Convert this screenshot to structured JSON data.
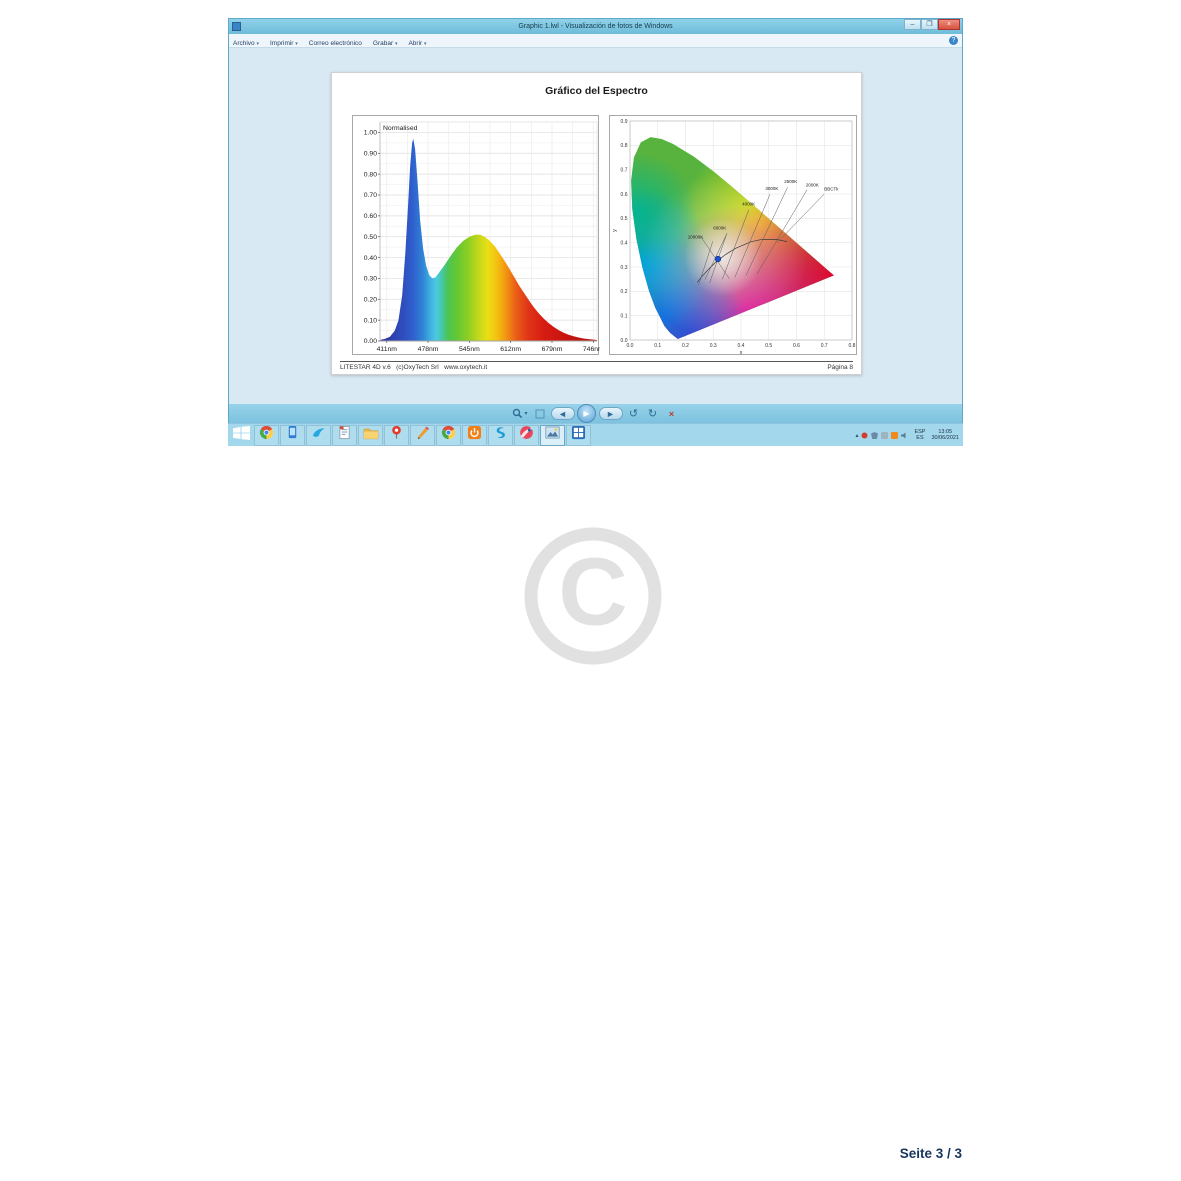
{
  "page": {
    "footer_page_label": "Seite 3 / 3",
    "watermark_symbol": "C"
  },
  "window": {
    "title": "Graphic 1.lwl - Visualización de fotos de Windows",
    "minimize_glyph": "–",
    "close_glyph": "×",
    "help_glyph": "?",
    "menus": [
      {
        "id": "archivo",
        "label": "Archivo",
        "arrow": true
      },
      {
        "id": "imprimir",
        "label": "Imprimir",
        "arrow": true
      },
      {
        "id": "correo",
        "label": "Correo electrónico",
        "arrow": false
      },
      {
        "id": "grabar",
        "label": "Grabar",
        "arrow": true
      },
      {
        "id": "abrir",
        "label": "Abrir",
        "arrow": true
      }
    ]
  },
  "document": {
    "title": "Gráfico del Espectro",
    "footer_left": "LITESTAR 4D v.6   (c)OxyTech Srl   www.oxytech.it",
    "footer_right": "Página 8"
  },
  "viewer_controls": {
    "zoom_caret": "▾",
    "prev_glyph": "◄",
    "play_glyph": "▶",
    "next_glyph": "►",
    "rotate_ccw_glyph": "↺",
    "rotate_cw_glyph": "↻",
    "delete_glyph": "×"
  },
  "taskbar": {
    "items": [
      {
        "kind": "windows",
        "name": "start-button"
      },
      {
        "kind": "chrome",
        "name": "chrome-browser"
      },
      {
        "kind": "phone",
        "name": "phone-app"
      },
      {
        "kind": "bird",
        "name": "messaging-app"
      },
      {
        "kind": "doc",
        "name": "document-app"
      },
      {
        "kind": "folder",
        "name": "file-explorer"
      },
      {
        "kind": "pin",
        "name": "maps-app"
      },
      {
        "kind": "pencil",
        "name": "editor-app"
      },
      {
        "kind": "chrome",
        "name": "browser-2"
      },
      {
        "kind": "power",
        "name": "power-app"
      },
      {
        "kind": "swirl",
        "name": "skype-app"
      },
      {
        "kind": "darts",
        "name": "media-app"
      },
      {
        "kind": "photo",
        "name": "photo-viewer",
        "active": true
      },
      {
        "kind": "tiles",
        "name": "office-app"
      }
    ],
    "tray": {
      "caret": "▴",
      "language_top": "ESP",
      "language_bottom": "ES",
      "time": "13:05",
      "date": "30/06/2021"
    }
  },
  "chart_data": [
    {
      "type": "area",
      "title": "Normalised",
      "xlim": [
        400,
        752
      ],
      "ylim": [
        0,
        1.05
      ],
      "x_ticks": [
        {
          "value": 411,
          "label": "411nm"
        },
        {
          "value": 478,
          "label": "478nm"
        },
        {
          "value": 545,
          "label": "545nm"
        },
        {
          "value": 612,
          "label": "612nm"
        },
        {
          "value": 679,
          "label": "679nm"
        },
        {
          "value": 746,
          "label": "746nm"
        }
      ],
      "y_ticks": [
        0.0,
        0.1,
        0.2,
        0.3,
        0.4,
        0.5,
        0.6,
        0.7,
        0.8,
        0.9,
        1.0
      ],
      "points": [
        [
          400,
          0.005
        ],
        [
          408,
          0.01
        ],
        [
          416,
          0.02
        ],
        [
          424,
          0.05
        ],
        [
          430,
          0.1
        ],
        [
          436,
          0.22
        ],
        [
          441,
          0.42
        ],
        [
          445,
          0.62
        ],
        [
          449,
          0.84
        ],
        [
          452,
          0.95
        ],
        [
          454,
          0.97
        ],
        [
          457,
          0.92
        ],
        [
          461,
          0.76
        ],
        [
          465,
          0.58
        ],
        [
          470,
          0.44
        ],
        [
          475,
          0.36
        ],
        [
          480,
          0.315
        ],
        [
          485,
          0.3
        ],
        [
          490,
          0.305
        ],
        [
          495,
          0.325
        ],
        [
          505,
          0.365
        ],
        [
          515,
          0.41
        ],
        [
          525,
          0.45
        ],
        [
          535,
          0.48
        ],
        [
          545,
          0.5
        ],
        [
          555,
          0.51
        ],
        [
          562,
          0.51
        ],
        [
          570,
          0.5
        ],
        [
          578,
          0.48
        ],
        [
          586,
          0.455
        ],
        [
          594,
          0.42
        ],
        [
          602,
          0.385
        ],
        [
          610,
          0.345
        ],
        [
          618,
          0.305
        ],
        [
          626,
          0.265
        ],
        [
          634,
          0.228
        ],
        [
          642,
          0.193
        ],
        [
          650,
          0.16
        ],
        [
          658,
          0.131
        ],
        [
          666,
          0.106
        ],
        [
          674,
          0.085
        ],
        [
          682,
          0.067
        ],
        [
          690,
          0.052
        ],
        [
          698,
          0.04
        ],
        [
          706,
          0.03
        ],
        [
          714,
          0.023
        ],
        [
          722,
          0.017
        ],
        [
          730,
          0.012
        ],
        [
          740,
          0.008
        ],
        [
          752,
          0.005
        ]
      ],
      "spectral_colors": [
        [
          400,
          "#2d2f9a"
        ],
        [
          440,
          "#2f50c0"
        ],
        [
          455,
          "#2f63cf"
        ],
        [
          470,
          "#2f86d6"
        ],
        [
          483,
          "#41b5e2"
        ],
        [
          492,
          "#4ccadf"
        ],
        [
          500,
          "#43c8a8"
        ],
        [
          510,
          "#4cc455"
        ],
        [
          525,
          "#63c832"
        ],
        [
          545,
          "#94cf22"
        ],
        [
          560,
          "#c4d81b"
        ],
        [
          575,
          "#eadf14"
        ],
        [
          590,
          "#f4c010"
        ],
        [
          605,
          "#f29313"
        ],
        [
          620,
          "#ea5f17"
        ],
        [
          640,
          "#e03517"
        ],
        [
          665,
          "#d71d12"
        ],
        [
          700,
          "#c81410"
        ],
        [
          752,
          "#b51210"
        ]
      ]
    },
    {
      "type": "chromaticity",
      "xlabel": "x",
      "ylabel": "y",
      "xlim": [
        0,
        0.8
      ],
      "ylim": [
        0,
        0.9
      ],
      "tick_step": 0.1,
      "source_point": {
        "x": 0.317,
        "y": 0.333
      },
      "base_color": "#57b33e",
      "fill_layers": [
        {
          "cx": 0.47,
          "cy": 0.47,
          "r": 0.3,
          "color": "#f4e400",
          "opacity": 1
        },
        {
          "cx": 0.735,
          "cy": 0.265,
          "r": 0.4,
          "color": "#e00713",
          "opacity": 1
        },
        {
          "cx": 0.43,
          "cy": 0.08,
          "r": 0.42,
          "color": "#e8009c",
          "opacity": 1
        },
        {
          "cx": 0.225,
          "cy": 0.01,
          "r": 0.22,
          "color": "#5022c8",
          "opacity": 1
        },
        {
          "cx": 0.125,
          "cy": 0.1,
          "r": 0.28,
          "color": "#1b66dd",
          "opacity": 1
        },
        {
          "cx": 0.05,
          "cy": 0.32,
          "r": 0.26,
          "color": "#009fe8",
          "opacity": 1
        },
        {
          "cx": 0.025,
          "cy": 0.52,
          "r": 0.22,
          "color": "#00b491",
          "opacity": 0.95
        },
        {
          "cx": 0.34,
          "cy": 0.34,
          "r": 0.3,
          "color": "#eef2f2",
          "opacity": 0.45
        },
        {
          "cx": 0.335,
          "cy": 0.34,
          "r": 0.14,
          "color": "#f4f6f6",
          "opacity": 0.8
        }
      ],
      "spectral_locus": [
        [
          0.1741,
          0.005
        ],
        [
          0.1714,
          0.0051
        ],
        [
          0.1644,
          0.0109
        ],
        [
          0.144,
          0.0297
        ],
        [
          0.1241,
          0.0578
        ],
        [
          0.0913,
          0.1327
        ],
        [
          0.0687,
          0.2007
        ],
        [
          0.0454,
          0.295
        ],
        [
          0.0235,
          0.4127
        ],
        [
          0.0082,
          0.5384
        ],
        [
          0.0039,
          0.6548
        ],
        [
          0.0139,
          0.7502
        ],
        [
          0.0389,
          0.812
        ],
        [
          0.0743,
          0.8338
        ],
        [
          0.1142,
          0.8262
        ],
        [
          0.1547,
          0.8059
        ],
        [
          0.2296,
          0.7543
        ],
        [
          0.3016,
          0.6923
        ],
        [
          0.3731,
          0.6245
        ],
        [
          0.4441,
          0.5547
        ],
        [
          0.5125,
          0.4866
        ],
        [
          0.5752,
          0.4242
        ],
        [
          0.627,
          0.3725
        ],
        [
          0.6658,
          0.334
        ],
        [
          0.6915,
          0.3083
        ],
        [
          0.719,
          0.2809
        ],
        [
          0.7347,
          0.2653
        ]
      ],
      "planckian_locus": [
        [
          0.242,
          0.236
        ],
        [
          0.2565,
          0.2577
        ],
        [
          0.281,
          0.288
        ],
        [
          0.305,
          0.3158
        ],
        [
          0.3221,
          0.3318
        ],
        [
          0.345,
          0.3516
        ],
        [
          0.3805,
          0.3767
        ],
        [
          0.4369,
          0.4041
        ],
        [
          0.477,
          0.4137
        ],
        [
          0.5267,
          0.4133
        ],
        [
          0.566,
          0.4044
        ]
      ],
      "isotherms": [
        {
          "label": "10000K",
          "line": [
            [
              0.247,
              0.225
            ],
            [
              0.298,
              0.405
            ]
          ],
          "label_pos": [
            0.208,
            0.418
          ]
        },
        {
          "label": "6000K",
          "line": [
            [
              0.287,
              0.235
            ],
            [
              0.35,
              0.44
            ]
          ],
          "label_pos": [
            0.3,
            0.455
          ]
        },
        {
          "label": "4000K",
          "line": [
            [
              0.333,
              0.25
            ],
            [
              0.428,
              0.535
            ]
          ],
          "label_pos": [
            0.404,
            0.552
          ]
        },
        {
          "label": "3000K",
          "line": [
            [
              0.378,
              0.258
            ],
            [
              0.505,
              0.6
            ]
          ],
          "label_pos": [
            0.488,
            0.617
          ]
        },
        {
          "label": "2500K",
          "line": [
            [
              0.418,
              0.266
            ],
            [
              0.568,
              0.628
            ]
          ],
          "label_pos": [
            0.556,
            0.645
          ]
        },
        {
          "label": "2000K",
          "line": [
            [
              0.458,
              0.272
            ],
            [
              0.638,
              0.617
            ]
          ],
          "label_pos": [
            0.634,
            0.63
          ]
        },
        {
          "label": "BBCTk",
          "line": [
            [
              0.53,
              0.4
            ],
            [
              0.7,
              0.6
            ]
          ],
          "label_pos": [
            0.7,
            0.614
          ]
        }
      ],
      "cross_lines": [
        [
          [
            0.255,
            0.425
          ],
          [
            0.358,
            0.252
          ]
        ],
        [
          [
            0.27,
            0.248
          ],
          [
            0.347,
            0.432
          ]
        ]
      ]
    }
  ]
}
